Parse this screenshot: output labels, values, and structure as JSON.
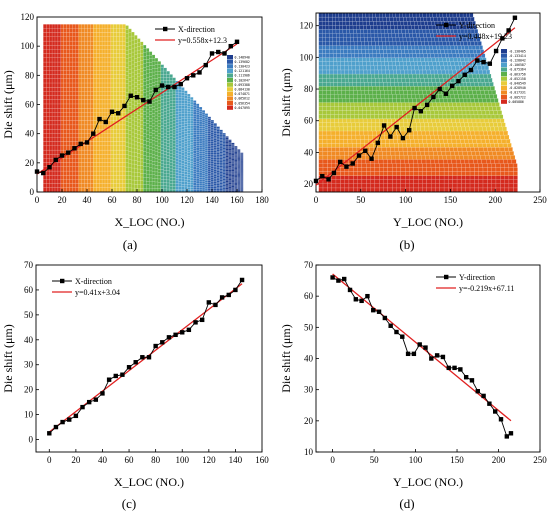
{
  "chart_data": [
    {
      "type": "scatter",
      "panel_label": "(a)",
      "xlabel": "X_LOC (NO.)",
      "ylabel": "Die shift (μm)",
      "xlim": [
        0,
        180
      ],
      "ylim": [
        0,
        120
      ],
      "xticks": [
        0,
        20,
        40,
        60,
        80,
        100,
        120,
        140,
        160,
        180
      ],
      "yticks": [
        0,
        20,
        40,
        60,
        80,
        100,
        120
      ],
      "legend_position": "top-right",
      "background": "contour",
      "contour_bands": [
        "#d42a1e",
        "#e8581c",
        "#f08a24",
        "#f5b02c",
        "#e8cc3a",
        "#a8c83a",
        "#5cb04a",
        "#4aa890",
        "#4fa0cc",
        "#3b7bc0",
        "#2a58a8",
        "#1e3d8e"
      ],
      "colorbar_labels": [
        "0.148940",
        "0.139682",
        "0.130423",
        "0.121164",
        "0.111906",
        "0.102647",
        "0.093388",
        "0.084130",
        "0.074871",
        "0.065612",
        "0.056354",
        "0.047095"
      ],
      "series": [
        {
          "name": "X-direction",
          "color": "#000000",
          "marker": "square",
          "x": [
            0,
            5,
            10,
            15,
            20,
            25,
            30,
            35,
            40,
            45,
            50,
            55,
            60,
            65,
            70,
            75,
            80,
            85,
            90,
            95,
            100,
            105,
            110,
            115,
            120,
            125,
            130,
            135,
            140,
            145,
            150,
            155,
            160
          ],
          "y": [
            14,
            13,
            17,
            22,
            25,
            27,
            30,
            33,
            34,
            40,
            50,
            48,
            55,
            54,
            59,
            66,
            65,
            63,
            62,
            70,
            73,
            72,
            72,
            74,
            78,
            80,
            82,
            87,
            95,
            96,
            95,
            100,
            103
          ]
        }
      ],
      "fit": {
        "label": "y=0.558x+12.3",
        "slope": 0.558,
        "intercept": 12.3,
        "x_range": [
          0,
          160
        ],
        "color": "#e02020"
      }
    },
    {
      "type": "scatter",
      "panel_label": "(b)",
      "xlabel": "Y_LOC (NO.)",
      "ylabel": "Die shift (μm)",
      "xlim": [
        0,
        250
      ],
      "ylim": [
        15,
        128
      ],
      "xticks": [
        0,
        50,
        100,
        150,
        200,
        250
      ],
      "yticks": [
        20,
        40,
        60,
        80,
        100,
        120
      ],
      "legend_position": "top-right",
      "background": "contour",
      "contour_bands": [
        "#d42a1e",
        "#e8581c",
        "#f08a24",
        "#f5b02c",
        "#e8cc3a",
        "#a8c83a",
        "#5cb04a",
        "#4aa890",
        "#4fa0cc",
        "#3b7bc0",
        "#2a58a8",
        "#1e3d8e"
      ],
      "colorbar_labels": [
        "-0.138405",
        "-0.133414",
        "-0.128042",
        "-0.106587",
        "-0.075364",
        "-0.063756",
        "-0.052158",
        "-0.040549",
        "-0.028940",
        "-0.017331",
        "-0.005722",
        "0.005886"
      ],
      "series": [
        {
          "name": "Y-direction",
          "color": "#000000",
          "marker": "square",
          "x": [
            0,
            7,
            14,
            20,
            27,
            34,
            41,
            48,
            55,
            62,
            69,
            76,
            83,
            90,
            97,
            104,
            110,
            117,
            124,
            131,
            138,
            145,
            152,
            159,
            166,
            173,
            180,
            187,
            194,
            201,
            208,
            215,
            222
          ],
          "y": [
            22,
            25,
            23,
            27,
            34,
            31,
            33,
            38,
            41,
            36,
            46,
            57,
            50,
            56,
            49,
            54,
            68,
            66,
            70,
            75,
            80,
            77,
            82,
            85,
            89,
            92,
            98,
            97,
            96,
            104,
            112,
            117,
            125
          ]
        }
      ],
      "fit": {
        "label": "y=0.448x+19.23",
        "slope": 0.448,
        "intercept": 19.23,
        "x_range": [
          0,
          222
        ],
        "color": "#e02020"
      }
    },
    {
      "type": "scatter",
      "panel_label": "(c)",
      "xlabel": "X_LOC (NO.)",
      "ylabel": "Die shift (μm)",
      "xlim": [
        -10,
        160
      ],
      "ylim": [
        -5,
        70
      ],
      "xticks": [
        0,
        20,
        40,
        60,
        80,
        100,
        120,
        140,
        160
      ],
      "yticks": [
        0,
        10,
        20,
        30,
        40,
        50,
        60,
        70
      ],
      "legend_position": "top-left",
      "series": [
        {
          "name": "X-direction",
          "color": "#000000",
          "marker": "square",
          "x": [
            0,
            5,
            10,
            15,
            20,
            25,
            30,
            35,
            40,
            45,
            50,
            55,
            60,
            65,
            70,
            75,
            80,
            85,
            90,
            95,
            100,
            105,
            110,
            115,
            120,
            125,
            130,
            135,
            140,
            145
          ],
          "y": [
            2.5,
            5,
            7,
            8,
            9.5,
            13,
            15,
            16,
            18.5,
            24,
            25.5,
            26,
            29,
            31,
            33,
            33,
            37.5,
            39,
            41,
            42,
            43,
            44,
            47,
            48,
            55,
            54,
            57,
            58,
            60,
            64
          ]
        }
      ],
      "fit": {
        "label": "y=0.41x+3.04",
        "slope": 0.41,
        "intercept": 3.04,
        "x_range": [
          0,
          145
        ],
        "color": "#e02020"
      }
    },
    {
      "type": "scatter",
      "panel_label": "(d)",
      "xlabel": "Y_LOC (NO.)",
      "ylabel": "Die shift (μm)",
      "xlim": [
        -20,
        250
      ],
      "ylim": [
        10,
        70
      ],
      "xticks": [
        0,
        50,
        100,
        150,
        200,
        250
      ],
      "yticks": [
        10,
        20,
        30,
        40,
        50,
        60,
        70
      ],
      "legend_position": "top-right",
      "series": [
        {
          "name": "Y-direction",
          "color": "#000000",
          "marker": "square",
          "x": [
            0,
            7,
            14,
            21,
            28,
            35,
            42,
            49,
            56,
            63,
            70,
            77,
            84,
            91,
            98,
            105,
            112,
            119,
            126,
            133,
            140,
            147,
            154,
            161,
            168,
            175,
            182,
            189,
            196,
            203,
            210,
            215
          ],
          "y": [
            66,
            65,
            65.5,
            62,
            59,
            58.5,
            60,
            55.5,
            55,
            53,
            50.5,
            48.5,
            47,
            41.5,
            41.5,
            44.5,
            43.5,
            40,
            41,
            40.5,
            37,
            37,
            36.5,
            34,
            33,
            29.5,
            28,
            25.5,
            23,
            20.5,
            15,
            16
          ]
        }
      ],
      "fit": {
        "label": "y=-0.219x+67.11",
        "slope": -0.219,
        "intercept": 67.11,
        "x_range": [
          0,
          215
        ],
        "color": "#e02020"
      }
    }
  ]
}
